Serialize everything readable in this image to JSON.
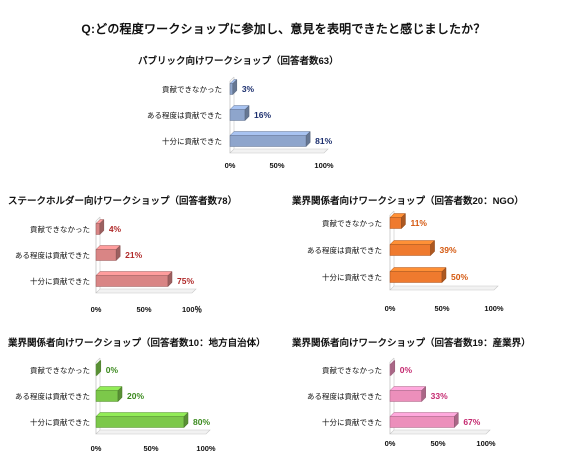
{
  "question": "Q:どの程度ワークショップに参加し、意見を表明できたと感じましたか？",
  "chart_data": [
    {
      "type": "bar",
      "title": "パブリック向けワークショップ（回答者数63）",
      "categories": [
        "貢献できなかった",
        "ある程度は貢献できた",
        "十分に貢献できた"
      ],
      "values": [
        3,
        16,
        81
      ],
      "value_labels": [
        "3%",
        "16%",
        "81%"
      ],
      "xlim": [
        0,
        100
      ],
      "xticks": [
        "0%",
        "50%",
        "100%"
      ],
      "color": "#8ea5cc",
      "label_color": "#1c2f6e"
    },
    {
      "type": "bar",
      "title": "ステークホルダー向けワークショップ（回答者数78）",
      "categories": [
        "貢献できなかった",
        "ある程度は貢献できた",
        "十分に貢献できた"
      ],
      "values": [
        4,
        21,
        75
      ],
      "value_labels": [
        "4%",
        "21%",
        "75%"
      ],
      "xlim": [
        0,
        100
      ],
      "xticks": [
        "0%",
        "50%",
        "100％"
      ],
      "color": "#d98585",
      "label_color": "#b02a2a"
    },
    {
      "type": "bar",
      "title": "業界関係者向けワークショップ（回答者数20：NGO）",
      "categories": [
        "貢献できなかった",
        "ある程度は貢献できた",
        "十分に貢献できた"
      ],
      "values": [
        11,
        39,
        50
      ],
      "value_labels": [
        "11%",
        "39%",
        "50%"
      ],
      "xlim": [
        0,
        100
      ],
      "xticks": [
        "0%",
        "50%",
        "100%"
      ],
      "color": "#ef7a2e",
      "label_color": "#d4580f"
    },
    {
      "type": "bar",
      "title": "業界関係者向けワークショップ（回答者数10：地方自治体）",
      "categories": [
        "貢献できなかった",
        "ある程度は貢献できた",
        "十分に貢献できた"
      ],
      "values": [
        0,
        20,
        80
      ],
      "value_labels": [
        "0%",
        "20%",
        "80%"
      ],
      "xlim": [
        0,
        100
      ],
      "xticks": [
        "0%",
        "50%",
        "100%"
      ],
      "color": "#7cc84a",
      "label_color": "#3b8a1e"
    },
    {
      "type": "bar",
      "title": "業界関係者向けワークショップ（回答者数19：産業界）",
      "categories": [
        "貢献できなかった",
        "ある程度は貢献できた",
        "十分に貢献できた"
      ],
      "values": [
        0,
        33,
        67
      ],
      "value_labels": [
        "0%",
        "33%",
        "67%"
      ],
      "xlim": [
        0,
        100
      ],
      "xticks": [
        "0%",
        "50%",
        "100%"
      ],
      "color": "#ec8fbb",
      "label_color": "#c4286f"
    }
  ]
}
